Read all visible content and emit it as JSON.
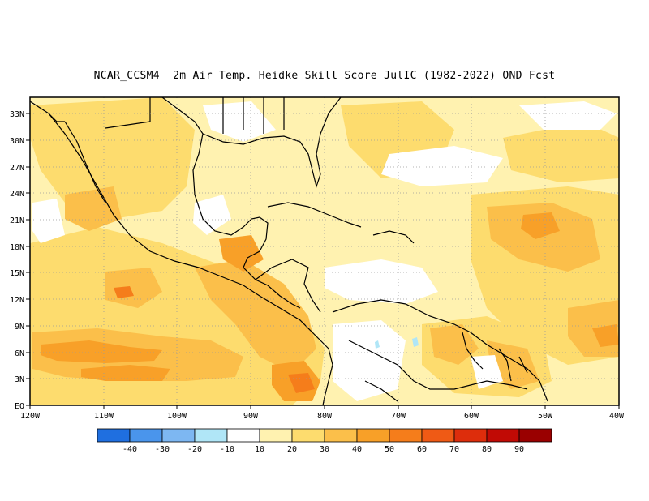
{
  "title": "NCAR_CCSM4  2m Air Temp. Heidke Skill Score JulIC (1982-2022) OND Fcst",
  "lat_labels": [
    "33N",
    "30N",
    "27N",
    "24N",
    "21N",
    "18N",
    "15N",
    "12N",
    "9N",
    "6N",
    "3N",
    "EQ"
  ],
  "lon_labels": [
    "120W",
    "110W",
    "100W",
    "90W",
    "80W",
    "70W",
    "60W",
    "50W",
    "40W"
  ],
  "colorbar": {
    "colors": [
      "#1f6fe0",
      "#4a95ec",
      "#7db7f2",
      "#b0e6f7",
      "#ffffff",
      "#fff2b0",
      "#fddc6e",
      "#fbbf4a",
      "#f8a028",
      "#f57d1b",
      "#ef5a15",
      "#dd2d0c",
      "#c10a05",
      "#9a0000"
    ],
    "labels": [
      "-40",
      "-30",
      "-20",
      "-10",
      "10",
      "20",
      "30",
      "40",
      "50",
      "60",
      "70",
      "80",
      "90"
    ]
  }
}
